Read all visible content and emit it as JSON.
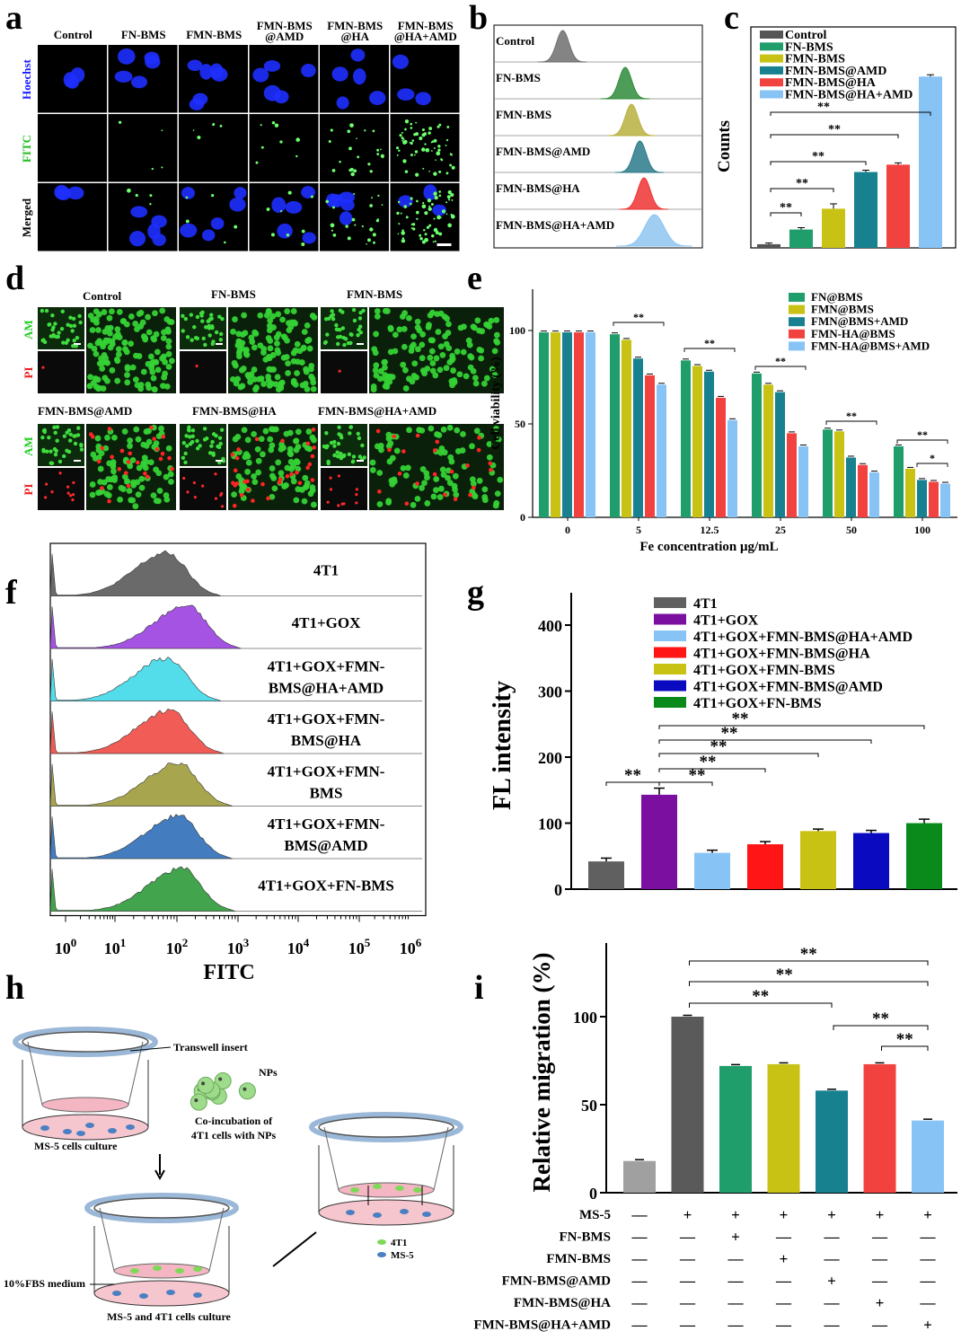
{
  "panel_letters": [
    "a",
    "b",
    "c",
    "d",
    "e",
    "f",
    "g",
    "h",
    "i"
  ],
  "panel_a": {
    "columns": [
      "Control",
      "FN-BMS",
      "FMN-BMS",
      "FMN-BMS\n@AMD",
      "FMN-BMS\n@HA",
      "FMN-BMS\n@HA+AMD"
    ],
    "rows": [
      "Hoechst",
      "FITC",
      "Merged"
    ],
    "row_colors": [
      "#1a1aff",
      "#22bb22",
      "#000000"
    ]
  },
  "panel_d": {
    "groups": [
      "Control",
      "FN-BMS",
      "FMN-BMS",
      "FMN-BMS@AMD",
      "FMN-BMS@HA",
      "FMN-BMS@HA+AMD"
    ],
    "stain_labels": [
      "AM",
      "PI"
    ],
    "stain_colors": [
      "#22cc22",
      "#ee2222"
    ]
  },
  "panel_h": {
    "labels": {
      "transwell": "Transwell insert",
      "nps": "NPs",
      "coinc": "Co-incubation of",
      "coinc2": "4T1 cells with NPs",
      "ms5culture": "MS-5 cells culture",
      "medium": "10%FBS medium",
      "coculture": "MS-5 and 4T1 cells culture"
    },
    "legend": [
      {
        "name": "4T1",
        "color": "#7ed957"
      },
      {
        "name": "MS-5",
        "color": "#4a7fc1"
      }
    ]
  },
  "chart_data": [
    {
      "panel": "b",
      "type": "histogram",
      "series": [
        {
          "name": "Control",
          "peak_x": 0.33,
          "color": "#6e6e6e"
        },
        {
          "name": "FN-BMS",
          "peak_x": 0.63,
          "color": "#2e8b3a"
        },
        {
          "name": "FMN-BMS",
          "peak_x": 0.66,
          "color": "#b8b040"
        },
        {
          "name": "FMN-BMS@AMD",
          "peak_x": 0.7,
          "color": "#2a7a8a"
        },
        {
          "name": "FMN-BMS@HA",
          "peak_x": 0.72,
          "color": "#ee3333"
        },
        {
          "name": "FMN-BMS@HA+AMD",
          "peak_x": 0.77,
          "color": "#8ec5f0"
        }
      ]
    },
    {
      "panel": "c",
      "type": "bar",
      "ylabel": "Counts",
      "categories": [
        "Control",
        "FN-BMS",
        "FMN-BMS",
        "FMN-BMS@AMD",
        "FMN-BMS@HA",
        "FMN-BMS@HA+AMD"
      ],
      "values": [
        3,
        15,
        32,
        62,
        68,
        140
      ],
      "errors": [
        1,
        1.5,
        4,
        1.5,
        1.5,
        1.5
      ],
      "colors": [
        "#555555",
        "#1f9e6b",
        "#c8c214",
        "#17818f",
        "#f2423f",
        "#88c3f6"
      ],
      "ylim": [
        0,
        160
      ],
      "significance": [
        "**",
        "**",
        "**",
        "**",
        "**"
      ]
    },
    {
      "panel": "e",
      "type": "bar",
      "xlabel": "Fe  concentration μg/mL",
      "ylabel": "Cell viability (%)",
      "categories": [
        "0",
        "5",
        "12.5",
        "25",
        "50",
        "100"
      ],
      "yticks": [
        "0",
        "50",
        "100"
      ],
      "ylim": [
        0,
        120
      ],
      "series": [
        {
          "name": "FN@BMS",
          "color": "#1f9e6b",
          "values": [
            99,
            98,
            84,
            77,
            47,
            38
          ]
        },
        {
          "name": "FMN@BMS",
          "color": "#c8c214",
          "values": [
            99,
            95,
            81,
            71,
            46,
            26
          ]
        },
        {
          "name": "FMN@BMS+AMD",
          "color": "#17818f",
          "values": [
            99,
            85,
            78,
            67,
            32,
            20
          ]
        },
        {
          "name": "FMN-HA@BMS",
          "color": "#f2423f",
          "values": [
            99,
            76,
            64,
            45,
            28,
            19
          ]
        },
        {
          "name": "FMN-HA@BMS+AMD",
          "color": "#88c3f6",
          "values": [
            99,
            71,
            52,
            38,
            24,
            18
          ]
        }
      ],
      "significance": [
        "**",
        "**",
        "**",
        "**",
        "**",
        "*"
      ]
    },
    {
      "panel": "f",
      "type": "histogram",
      "xlabel": "FITC",
      "xticks": [
        "10^0",
        "10^1",
        "10^2",
        "10^3",
        "10^4",
        "10^5",
        "10^6"
      ],
      "series": [
        {
          "name": "4T1",
          "color": "#5a5a5a",
          "peak": 0.38
        },
        {
          "name": "4T1+GOX",
          "color": "#9b40e0",
          "peak": 0.45
        },
        {
          "name": "4T1+GOX+FMN-BMS@HA+AMD",
          "color": "#40d8e8",
          "peak": 0.38
        },
        {
          "name": "4T1+GOX+FMN-BMS@HA",
          "color": "#f04a44",
          "peak": 0.39
        },
        {
          "name": "4T1+GOX+FMN-BMS",
          "color": "#9e9b3c",
          "peak": 0.42
        },
        {
          "name": "4T1+GOX+FMN-BMS@AMD",
          "color": "#2f6fb8",
          "peak": 0.42
        },
        {
          "name": "4T1+GOX+FN-BMS",
          "color": "#2e9a3a",
          "peak": 0.43
        }
      ],
      "row_labels": [
        [
          "4T1"
        ],
        [
          "4T1+GOX"
        ],
        [
          "4T1+GOX+FMN-",
          "BMS@HA+AMD"
        ],
        [
          "4T1+GOX+FMN-",
          "BMS@HA"
        ],
        [
          "4T1+GOX+FMN-",
          "BMS"
        ],
        [
          "4T1+GOX+FMN-",
          "BMS@AMD"
        ],
        [
          "4T1+GOX+FN-BMS"
        ]
      ]
    },
    {
      "panel": "g",
      "type": "bar",
      "ylabel": "FL intensity",
      "categories": [
        "4T1",
        "4T1+GOX",
        "4T1+GOX+FMN-BMS@HA+AMD",
        "4T1+GOX+FMN-BMS@HA",
        "4T1+GOX+FMN-BMS",
        "4T1+GOX+FMN-BMS@AMD",
        "4T1+GOX+FN-BMS"
      ],
      "values": [
        42,
        143,
        55,
        68,
        88,
        85,
        100
      ],
      "errors": [
        5,
        10,
        4,
        4,
        3,
        4,
        6
      ],
      "colors": [
        "#606060",
        "#7b0fa0",
        "#88c3f6",
        "#ff1515",
        "#c8c214",
        "#0a0ac0",
        "#0a8a1a"
      ],
      "ylim": [
        0,
        400
      ],
      "yticks": [
        "0",
        "100",
        "200",
        "300",
        "400"
      ],
      "significance": [
        "**",
        "**",
        "**",
        "**",
        "**",
        "**"
      ]
    },
    {
      "panel": "i",
      "type": "bar",
      "ylabel": "Relative migration (%)",
      "values": [
        18,
        100,
        72,
        73,
        58,
        73,
        41
      ],
      "errors": [
        0.7,
        0.7,
        0.7,
        0.7,
        0.7,
        0.7,
        0.7
      ],
      "colors": [
        "#a0a0a0",
        "#5a5a5a",
        "#1f9e6b",
        "#c8c214",
        "#17818f",
        "#f2423f",
        "#88c3f6"
      ],
      "ylim": [
        0,
        130
      ],
      "yticks": [
        "0",
        "50",
        "100"
      ],
      "significance": [
        "**",
        "**",
        "**",
        "**",
        "**"
      ],
      "table_rows": [
        {
          "label": "MS-5",
          "cells": [
            "—",
            "+",
            "+",
            "+",
            "+",
            "+",
            "+"
          ]
        },
        {
          "label": "FN-BMS",
          "cells": [
            "—",
            "—",
            "+",
            "—",
            "—",
            "—",
            "—"
          ]
        },
        {
          "label": "FMN-BMS",
          "cells": [
            "—",
            "—",
            "—",
            "+",
            "—",
            "—",
            "—"
          ]
        },
        {
          "label": "FMN-BMS@AMD",
          "cells": [
            "—",
            "—",
            "—",
            "—",
            "+",
            "—",
            "—"
          ]
        },
        {
          "label": "FMN-BMS@HA",
          "cells": [
            "—",
            "—",
            "—",
            "—",
            "—",
            "+",
            "—"
          ]
        },
        {
          "label": "FMN-BMS@HA+AMD",
          "cells": [
            "—",
            "—",
            "—",
            "—",
            "—",
            "—",
            "+"
          ]
        }
      ]
    }
  ]
}
